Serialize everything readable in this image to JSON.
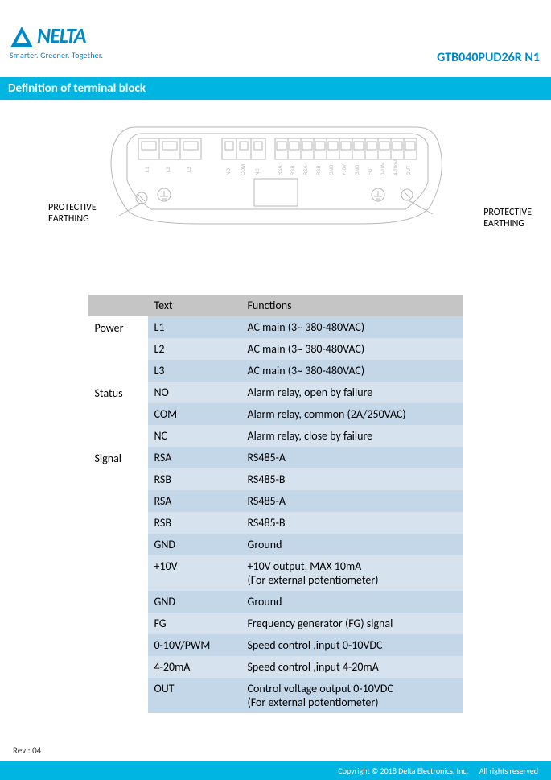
{
  "header": {
    "brand_wordmark": "NELTA",
    "tagline": "Smarter.  Greener.  Together.",
    "part_number": "GTB040PUD26R  N1",
    "title": "Definition of terminal block",
    "logo_color": "#0087c5"
  },
  "diagram": {
    "label_left_l1": "PROTECTIVE",
    "label_left_l2": "EARTHING",
    "label_right_l1": "PROTECTIVE",
    "label_right_l2": "EARTHING",
    "outline_color": "#b7b7b7",
    "terminal_labels_l": [
      "L1",
      "L2",
      "L3"
    ],
    "terminal_labels_m": [
      "NO",
      "COM",
      "NC"
    ],
    "terminal_labels_r": [
      "RSA",
      "RSB",
      "RSA",
      "RSB",
      "GND",
      "+10V",
      "GND",
      "FG",
      "0-10V",
      "4-20mA",
      "OUT"
    ]
  },
  "table": {
    "header": {
      "cat": "",
      "text": "Text",
      "func": "Functions"
    },
    "band_colors": {
      "a": "#c4d7e9",
      "b": "#d6e3ef",
      "header": "#c5c5c5"
    },
    "groups": [
      {
        "category": "Power",
        "rows": [
          {
            "text": "L1",
            "func": "AC main (3~ 380-480VAC)"
          },
          {
            "text": "L2",
            "func": "AC main (3~ 380-480VAC)"
          },
          {
            "text": "L3",
            "func": "AC main (3~ 380-480VAC)"
          }
        ]
      },
      {
        "category": "Status",
        "rows": [
          {
            "text": "NO",
            "func": "Alarm relay, open by failure"
          },
          {
            "text": "COM",
            "func": "Alarm relay, common (2A/250VAC)"
          },
          {
            "text": "NC",
            "func": "Alarm relay, close by failure"
          }
        ]
      },
      {
        "category": "Signal",
        "rows": [
          {
            "text": "RSA",
            "func": "RS485-A"
          },
          {
            "text": "RSB",
            "func": "RS485-B"
          },
          {
            "text": "RSA",
            "func": "RS485-A"
          },
          {
            "text": "RSB",
            "func": "RS485-B"
          },
          {
            "text": "GND",
            "func": "Ground"
          },
          {
            "text": "+10V",
            "func": "+10V output, MAX 10mA\n(For external potentiometer)"
          },
          {
            "text": "GND",
            "func": "Ground"
          },
          {
            "text": "FG",
            "func": "Frequency generator (FG) signal"
          },
          {
            "text": "0-10V/PWM",
            "func": "Speed control ,input 0-10VDC"
          },
          {
            "text": "4-20mA",
            "func": "Speed control ,input 4-20mA"
          },
          {
            "text": "OUT",
            "func": "Control voltage output 0-10VDC\n(For external potentiometer)"
          }
        ]
      }
    ]
  },
  "footer": {
    "revision": "Rev : 04",
    "copyright": "Copyright © 2018 Delta Electronics, Inc.",
    "rights": "All rights reserved"
  }
}
